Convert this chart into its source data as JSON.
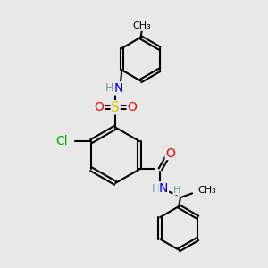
{
  "bg_color": "#e8e8e8",
  "bond_color": "#000000",
  "bond_width": 1.5,
  "atom_colors": {
    "C": "#000000",
    "H": "#70a0a0",
    "N": "#0000ee",
    "O": "#ff0000",
    "S": "#cccc00",
    "Cl": "#00aa00"
  },
  "font_size": 9,
  "fig_size": [
    3.0,
    3.0
  ],
  "dpi": 100,
  "xlim": [
    0,
    10
  ],
  "ylim": [
    0,
    10
  ]
}
